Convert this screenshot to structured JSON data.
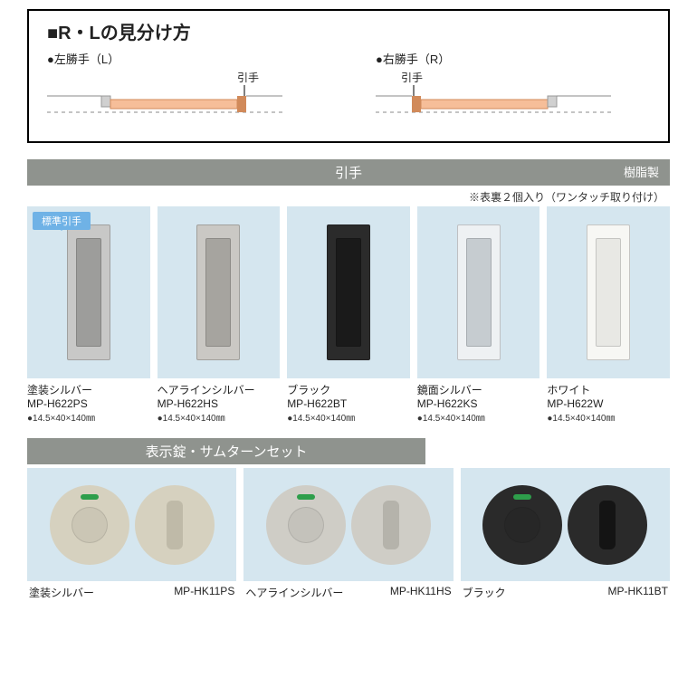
{
  "colors": {
    "bar_bg": "#8f938e",
    "swatch_bg": "#d5e6ef",
    "badge_bg": "#6fb2e6",
    "door_fill": "#f6be99",
    "door_stroke": "#d18a5a",
    "wall_fill": "#d0d0d0"
  },
  "rl": {
    "title": "■R・Lの見分け方",
    "left": {
      "label": "●左勝手（L）",
      "pull": "引手"
    },
    "right": {
      "label": "●右勝手（R）",
      "pull": "引手"
    }
  },
  "handles": {
    "bar": "引手",
    "bar_note": "樹脂製",
    "note": "※表裏２個入り（ワンタッチ取り付け）",
    "badge": "標準引手",
    "items": [
      {
        "name": "塗装シルバー",
        "code": "MP-H622PS",
        "dim": "●14.5×40×140㎜",
        "outer_bg": "#c8c8c7",
        "inner_bg": "#9d9d9b",
        "show_badge": true
      },
      {
        "name": "ヘアラインシルバー",
        "code": "MP-H622HS",
        "dim": "●14.5×40×140㎜",
        "outer_bg": "#cac8c4",
        "inner_bg": "#a6a49f"
      },
      {
        "name": "ブラック",
        "code": "MP-H622BT",
        "dim": "●14.5×40×140㎜",
        "outer_bg": "#2b2b2b",
        "inner_bg": "#1a1a1a"
      },
      {
        "name": "鏡面シルバー",
        "code": "MP-H622KS",
        "dim": "●14.5×40×140㎜",
        "outer_bg": "#eef1f3",
        "inner_bg": "#c6ccd0"
      },
      {
        "name": "ホワイト",
        "code": "MP-H622W",
        "dim": "●14.5×40×140㎜",
        "outer_bg": "#f7f7f4",
        "inner_bg": "#e8e8e4"
      }
    ]
  },
  "locks": {
    "bar": "表示錠・サムターンセット",
    "items": [
      {
        "name": "塗装シルバー",
        "code": "MP-HK11PS",
        "circle_bg": "#d6d1bf",
        "thumb_bg": "#bfbaa8",
        "ind_bg": "#2e9e4b"
      },
      {
        "name": "ヘアラインシルバー",
        "code": "MP-HK11HS",
        "circle_bg": "#cfcdc6",
        "thumb_bg": "#b5b3ab",
        "ind_bg": "#2e9e4b"
      },
      {
        "name": "ブラック",
        "code": "MP-HK11BT",
        "circle_bg": "#2a2a2a",
        "thumb_bg": "#141414",
        "ind_bg": "#2e9e4b"
      }
    ]
  }
}
